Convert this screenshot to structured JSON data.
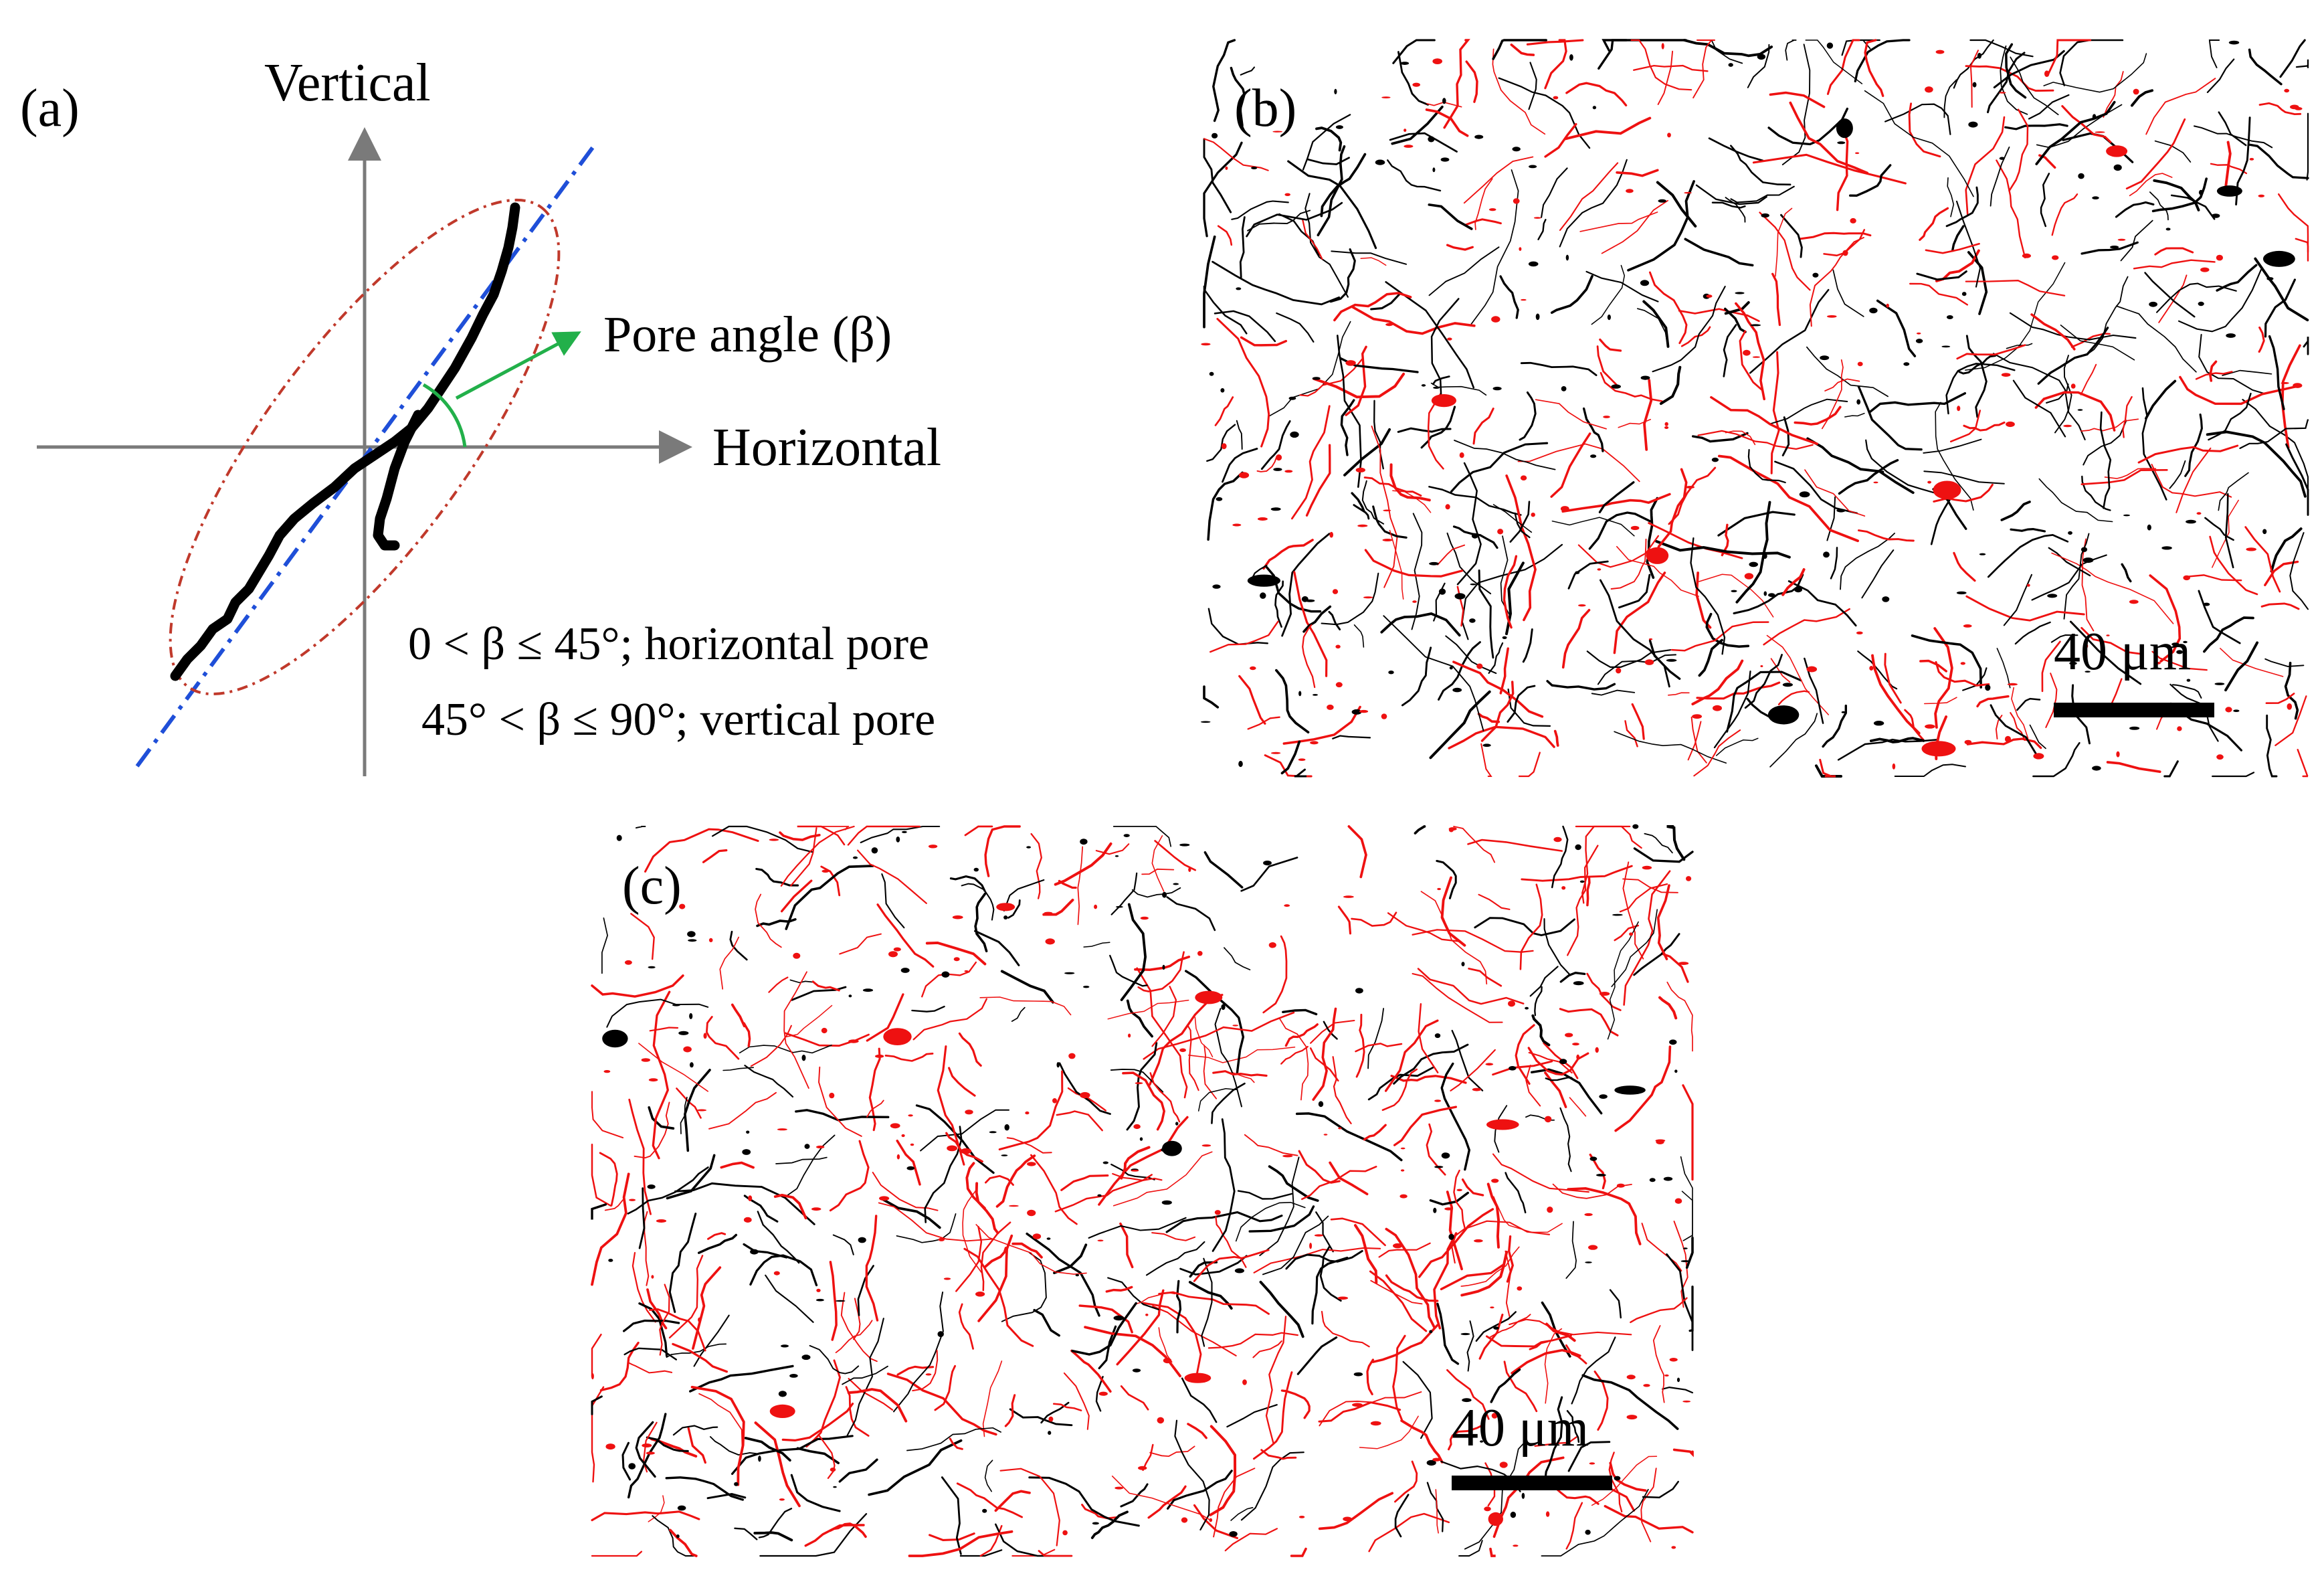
{
  "panel_a": {
    "label": "(a)",
    "vertical_axis_label": "Vertical",
    "horizontal_axis_label": "Horizontal",
    "pore_angle_label": "Pore angle (β)",
    "condition_horizontal": "0 < β ≤ 45°; horizontal pore",
    "condition_vertical": "45° < β ≤ 90°; vertical pore",
    "colors": {
      "axes": "#7a7a7a",
      "pore": "#000000",
      "ellipse": "#c0392b",
      "major_axis": "#1f4fd8",
      "angle_arrow": "#22b04a"
    }
  },
  "panel_b": {
    "label": "(b)",
    "scale_bar_label": "40 μm",
    "colors": {
      "horizontal_pores": "#000000",
      "vertical_pores": "#ee1111"
    }
  },
  "panel_c": {
    "label": "(c)",
    "scale_bar_label": "40 μm",
    "colors": {
      "horizontal_pores": "#000000",
      "vertical_pores": "#ee1111"
    }
  }
}
